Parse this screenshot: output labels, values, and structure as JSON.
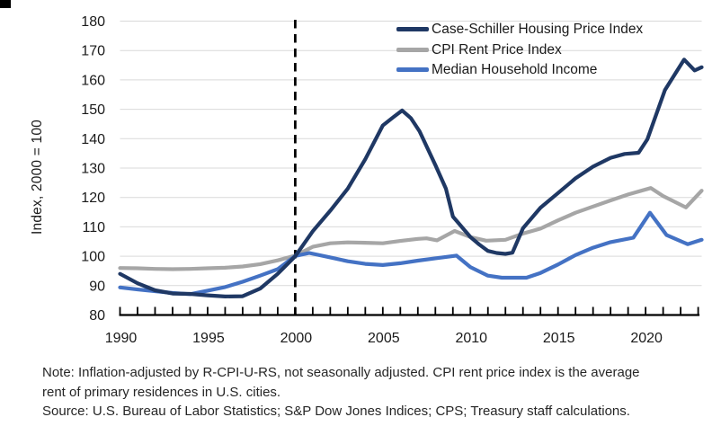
{
  "chart_data": {
    "type": "line",
    "title": "",
    "xlabel": "",
    "ylabel": "Index, 2000 = 100",
    "xlim": [
      1990,
      2023.2
    ],
    "ylim": [
      80,
      180
    ],
    "y_ticks": [
      80,
      90,
      100,
      110,
      120,
      130,
      140,
      150,
      160,
      170,
      180
    ],
    "x_ticks_labeled": [
      1990,
      1995,
      2000,
      2005,
      2010,
      2015,
      2020
    ],
    "x_ticks_minor": {
      "start": 1990,
      "end": 2023,
      "step": 1
    },
    "grid": "horizontal",
    "gridline_color": "#d9d9d9",
    "axis_color": "#000000",
    "reference_line": {
      "x": 2000,
      "style": "dashed",
      "color": "#000000"
    },
    "legend_position": "top-right",
    "series": [
      {
        "name": "Case-Schiller Housing Price Index",
        "color": "#1f3864",
        "points": [
          [
            1990,
            94.0
          ],
          [
            1991,
            90.8
          ],
          [
            1992,
            88.4
          ],
          [
            1993,
            87.3
          ],
          [
            1994,
            87.2
          ],
          [
            1995,
            86.7
          ],
          [
            1996,
            86.3
          ],
          [
            1997,
            86.4
          ],
          [
            1998,
            89.0
          ],
          [
            1999,
            94.0
          ],
          [
            2000,
            100.0
          ],
          [
            2001,
            108.5
          ],
          [
            2002,
            115.5
          ],
          [
            2003,
            123.0
          ],
          [
            2004,
            133.0
          ],
          [
            2005,
            144.5
          ],
          [
            2005.6,
            147.3
          ],
          [
            2006.1,
            149.6
          ],
          [
            2006.6,
            147.0
          ],
          [
            2007.1,
            142.5
          ],
          [
            2008,
            131.0
          ],
          [
            2008.6,
            123.0
          ],
          [
            2009,
            113.5
          ],
          [
            2010,
            106.5
          ],
          [
            2010.5,
            104.0
          ],
          [
            2011,
            101.8
          ],
          [
            2011.5,
            101.1
          ],
          [
            2012,
            100.8
          ],
          [
            2012.4,
            101.2
          ],
          [
            2013,
            109.5
          ],
          [
            2014,
            116.5
          ],
          [
            2015,
            121.5
          ],
          [
            2016,
            126.5
          ],
          [
            2017,
            130.5
          ],
          [
            2018,
            133.5
          ],
          [
            2018.8,
            134.8
          ],
          [
            2019.6,
            135.2
          ],
          [
            2020.1,
            139.8
          ],
          [
            2021.1,
            156.5
          ],
          [
            2022.2,
            166.9
          ],
          [
            2022.8,
            163.2
          ],
          [
            2023.2,
            164.3
          ]
        ]
      },
      {
        "name": "CPI Rent Price Index",
        "color": "#a6a6a6",
        "points": [
          [
            1990,
            96.0
          ],
          [
            1991,
            95.9
          ],
          [
            1992,
            95.7
          ],
          [
            1993,
            95.6
          ],
          [
            1994,
            95.7
          ],
          [
            1995,
            95.9
          ],
          [
            1996,
            96.1
          ],
          [
            1997,
            96.5
          ],
          [
            1998,
            97.3
          ],
          [
            1999,
            98.6
          ],
          [
            2000,
            100.2
          ],
          [
            2001,
            103.2
          ],
          [
            2002,
            104.4
          ],
          [
            2003,
            104.7
          ],
          [
            2004,
            104.6
          ],
          [
            2005,
            104.4
          ],
          [
            2006,
            105.2
          ],
          [
            2007,
            105.9
          ],
          [
            2007.5,
            106.1
          ],
          [
            2008.1,
            105.4
          ],
          [
            2009.1,
            108.6
          ],
          [
            2010,
            106.5
          ],
          [
            2010.9,
            105.3
          ],
          [
            2012,
            105.6
          ],
          [
            2013,
            107.7
          ],
          [
            2014,
            109.4
          ],
          [
            2015,
            112.2
          ],
          [
            2016,
            114.8
          ],
          [
            2017,
            116.9
          ],
          [
            2018,
            119.0
          ],
          [
            2019,
            121.0
          ],
          [
            2020.3,
            123.2
          ],
          [
            2021,
            120.5
          ],
          [
            2022.3,
            116.6
          ],
          [
            2023.2,
            122.3
          ]
        ]
      },
      {
        "name": "Median Household Income",
        "color": "#4472c4",
        "points": [
          [
            1990,
            89.4
          ],
          [
            1991,
            88.7
          ],
          [
            1992,
            88.1
          ],
          [
            1993,
            87.5
          ],
          [
            1994,
            87.1
          ],
          [
            1995,
            88.3
          ],
          [
            1996,
            89.5
          ],
          [
            1997,
            91.3
          ],
          [
            1998,
            93.4
          ],
          [
            1999,
            95.6
          ],
          [
            2000,
            100.1
          ],
          [
            2000.8,
            101.1
          ],
          [
            2002,
            99.6
          ],
          [
            2003,
            98.3
          ],
          [
            2004,
            97.4
          ],
          [
            2005,
            97.0
          ],
          [
            2006,
            97.6
          ],
          [
            2007,
            98.5
          ],
          [
            2008,
            99.3
          ],
          [
            2009.2,
            100.2
          ],
          [
            2010,
            96.3
          ],
          [
            2011,
            93.4
          ],
          [
            2011.8,
            92.7
          ],
          [
            2013.2,
            92.7
          ],
          [
            2014,
            94.3
          ],
          [
            2015,
            97.2
          ],
          [
            2016,
            100.4
          ],
          [
            2017,
            102.9
          ],
          [
            2018,
            104.8
          ],
          [
            2019.3,
            106.3
          ],
          [
            2020.25,
            114.8
          ],
          [
            2021.2,
            107.2
          ],
          [
            2022.4,
            104.1
          ],
          [
            2023.2,
            105.6
          ]
        ]
      }
    ]
  },
  "notes": {
    "note_line1": "Note: Inflation-adjusted by R-CPI-U-RS, not seasonally adjusted. CPI rent price index is the average",
    "note_line2": "rent of primary residences in U.S. cities.",
    "source_line": "Source: U.S. Bureau of Labor Statistics; S&P Dow Jones Indices; CPS; Treasury staff calculations."
  }
}
